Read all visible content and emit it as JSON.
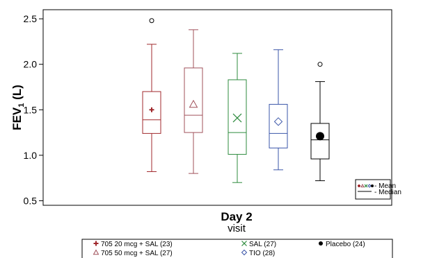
{
  "chart_data": {
    "type": "box",
    "xlabel": "Day 2",
    "xsublabel": "visit",
    "ylabel_main": "FEV",
    "ylabel_sub": "1",
    "ylabel_unit": " (L)",
    "ylim": [
      0.45,
      2.6
    ],
    "yticks": [
      "0.5",
      "1.0",
      "1.5",
      "2.0",
      "2.5"
    ],
    "groups": [
      {
        "name": "705 20 mcg + SAL (23)",
        "color": "#a0282c",
        "marker": "plus",
        "whisker_low": 0.82,
        "q1": 1.24,
        "median": 1.39,
        "q3": 1.7,
        "whisker_high": 2.22,
        "mean": 1.5,
        "outliers": [
          2.48
        ]
      },
      {
        "name": "705 50 mcg + SAL (27)",
        "color": "#a0505a",
        "marker": "triangle",
        "whisker_low": 0.8,
        "q1": 1.25,
        "median": 1.44,
        "q3": 1.96,
        "whisker_high": 2.38,
        "mean": 1.56,
        "outliers": []
      },
      {
        "name": "SAL (27)",
        "color": "#2e8b3e",
        "marker": "x",
        "whisker_low": 0.7,
        "q1": 1.01,
        "median": 1.25,
        "q3": 1.83,
        "whisker_high": 2.12,
        "mean": 1.41,
        "outliers": []
      },
      {
        "name": "TIO (28)",
        "color": "#3a55a8",
        "marker": "diamond",
        "whisker_low": 0.84,
        "q1": 1.08,
        "median": 1.24,
        "q3": 1.56,
        "whisker_high": 2.16,
        "mean": 1.37,
        "outliers": []
      },
      {
        "name": "Placebo (24)",
        "color": "#000000",
        "marker": "dot",
        "whisker_low": 0.72,
        "q1": 0.96,
        "median": 1.17,
        "q3": 1.35,
        "whisker_high": 1.81,
        "mean": 1.21,
        "outliers": [
          2.0
        ]
      }
    ],
    "inset_legend": {
      "mean_label": "- Mean",
      "median_label": "- Median"
    },
    "legend_placement": "bottom",
    "grid": false
  }
}
